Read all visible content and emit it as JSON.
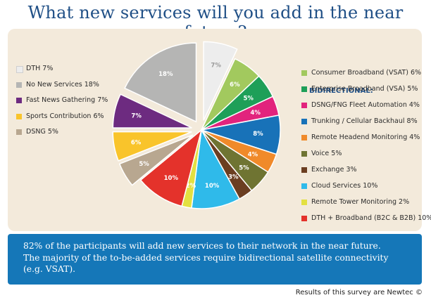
{
  "title": "What new services will you add in the near future?",
  "chart_data": {
    "type": "pie",
    "title": "What new services will you add in the near future?",
    "legend_groups": [
      {
        "heading": "",
        "placement": "left"
      },
      {
        "heading": "BIDIRECTIONAL:",
        "placement": "right"
      }
    ],
    "slices": [
      {
        "label": "DTH",
        "value": 7,
        "color": "#ededed",
        "group": 0,
        "exploded": true
      },
      {
        "label": "Consumer Broadband (VSAT)",
        "value": 6,
        "color": "#a2c95e",
        "group": 1,
        "exploded": false
      },
      {
        "label": "Enterprise Broadband (VSA)",
        "value": 5,
        "color": "#1e9f58",
        "group": 1,
        "exploded": false
      },
      {
        "label": "DSNG/FNG Fleet Automation",
        "value": 4,
        "color": "#e2237d",
        "group": 1,
        "exploded": false
      },
      {
        "label": "Trunking / Cellular Backhaul",
        "value": 8,
        "color": "#1872b8",
        "group": 1,
        "exploded": false
      },
      {
        "label": "Remote Headend Monitoring",
        "value": 4,
        "color": "#f08a2a",
        "group": 1,
        "exploded": false
      },
      {
        "label": "Voice",
        "value": 5,
        "color": "#6f7432",
        "group": 1,
        "exploded": false
      },
      {
        "label": "Exchange",
        "value": 3,
        "color": "#6b3e21",
        "group": 1,
        "exploded": false
      },
      {
        "label": "Cloud Services",
        "value": 10,
        "color": "#2fbaea",
        "group": 1,
        "exploded": false
      },
      {
        "label": "Remote Tower Monitoring",
        "value": 2,
        "color": "#e3e041",
        "group": 1,
        "exploded": false
      },
      {
        "label": "DTH + Broadband (B2C & B2B)",
        "value": 10,
        "color": "#e4322b",
        "group": 1,
        "exploded": false
      },
      {
        "label": "DSNG",
        "value": 5,
        "color": "#b8a790",
        "group": 0,
        "exploded": true
      },
      {
        "label": "Sports Contribution",
        "value": 6,
        "color": "#f9c42b",
        "group": 0,
        "exploded": true
      },
      {
        "label": "Fast News Gathering",
        "value": 7,
        "color": "#6d2b80",
        "group": 0,
        "exploded": true
      },
      {
        "label": "No New Services",
        "value": 18,
        "color": "#b5b5b4",
        "group": 0,
        "exploded": true
      }
    ],
    "left_legend_order": [
      "DTH",
      "No New Services",
      "Fast News Gathering",
      "Sports Contribution",
      "DSNG"
    ],
    "right_legend_order": [
      "Consumer Broadband (VSAT)",
      "Enterprise Broadband (VSA)",
      "DSNG/FNG Fleet Automation",
      "Trunking / Cellular Backhaul",
      "Remote Headend Monitoring",
      "Voice",
      "Exchange",
      "Cloud Services",
      "Remote Tower Monitoring",
      "DTH + Broadband (B2C & B2B)"
    ],
    "unit": "%"
  },
  "banner": {
    "line1": "82% of the participants will add new services to their network in the near future.",
    "line2": "The majority of the to-be-added services require bidirectional satellite connectivity",
    "line3": "(e.g. VSAT)."
  },
  "footer": "Results of this survey are Newtec ©"
}
